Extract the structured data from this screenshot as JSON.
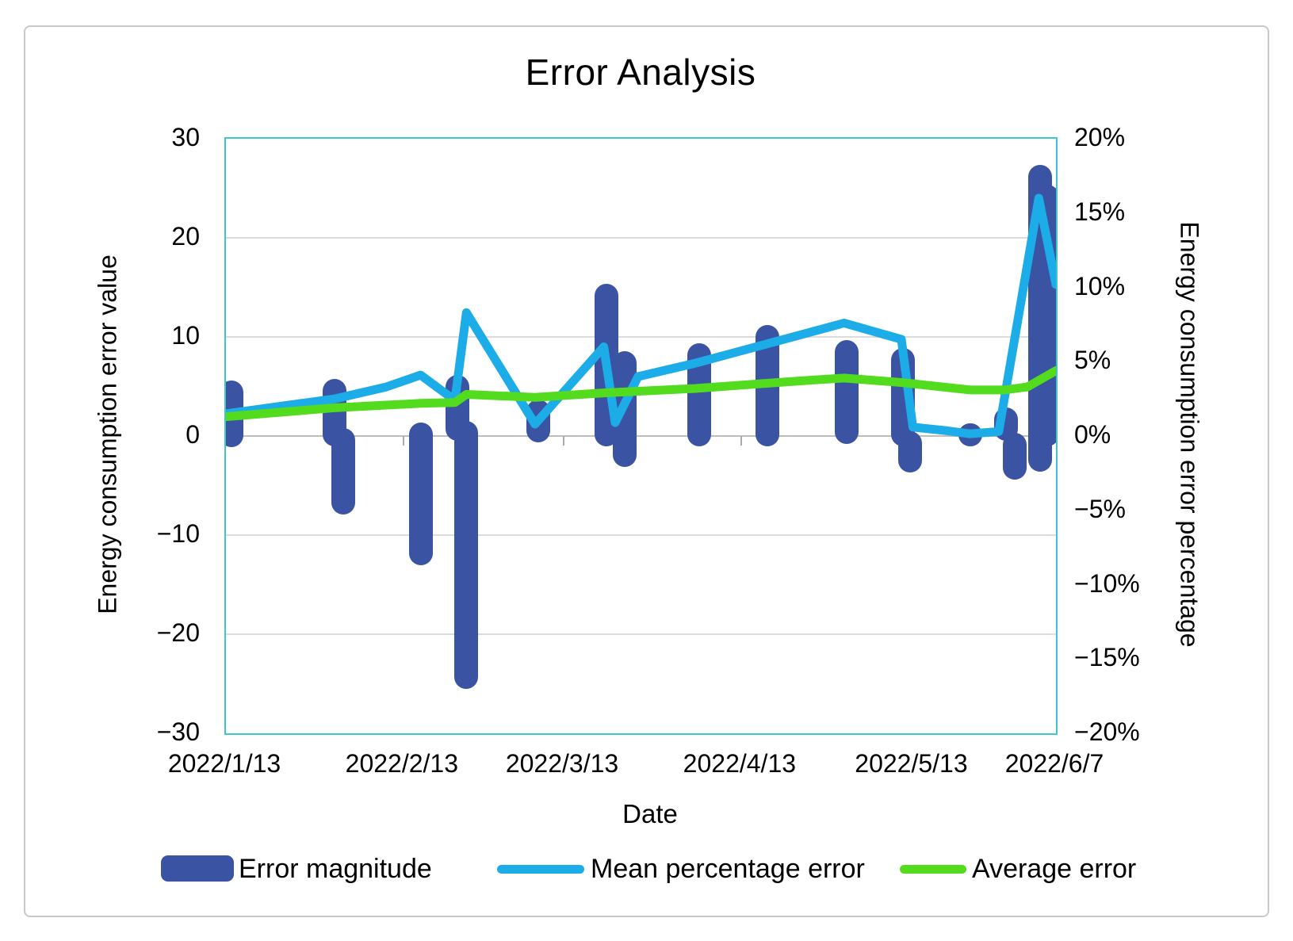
{
  "title": "Error Analysis",
  "axes": {
    "x_title": "Date",
    "left_title": "Energy consumption error value",
    "right_title": "Energy consumption error percentage",
    "left_tick_labels": [
      "30",
      "20",
      "10",
      "0",
      "−10",
      "−20",
      "−30"
    ],
    "right_tick_labels": [
      "20%",
      "15%",
      "10%",
      "5%",
      "0%",
      "−5%",
      "−10%",
      "−15%",
      "−20%"
    ],
    "x_tick_labels": [
      "2022/1/13",
      "2022/2/13",
      "2022/3/13",
      "2022/4/13",
      "2022/5/13",
      "2022/6/7"
    ]
  },
  "legend": {
    "bar_label": "Error magnitude",
    "blue_label": "Mean percentage error",
    "green_label": "Average error"
  },
  "colors": {
    "bar": "#3a53a3",
    "blue_line": "#1cace8",
    "green_line": "#53dc1d",
    "plot_border": "#3fc6c8",
    "gridline": "#dcdcdc",
    "zero_line": "#bdbdbd",
    "frame": "#c9c9c9",
    "text": "#000000"
  },
  "chart_data": {
    "type": "combo (rounded-cap bars + 2 lines, dual y-axes)",
    "title": "Error Analysis",
    "xlabel": "Date",
    "x_axis": {
      "start_date": "2022/1/13",
      "end_date": "2022/6/7",
      "span_days": 145,
      "tick_days": [
        0,
        31,
        59,
        90,
        120,
        145
      ],
      "tick_labels": [
        "2022/1/13",
        "2022/2/13",
        "2022/3/13",
        "2022/4/13",
        "2022/5/13",
        "2022/6/7"
      ]
    },
    "left_axis": {
      "title": "Energy consumption error value",
      "min": -30,
      "max": 30,
      "gridline_step": 10
    },
    "right_axis": {
      "title": "Energy consumption error percentage",
      "min_pct": -20,
      "max_pct": 20,
      "label_step_pct": 5
    },
    "bars_note": "Error magnitude, left axis; capsule bars with round caps; high/low = visible top/bottom extent in axis units",
    "bars": [
      {
        "day": 1,
        "date": "2022/1/14",
        "high": 5.6,
        "low": -1.1
      },
      {
        "day": 19,
        "date": "2022/2/1",
        "high": 5.8,
        "low": -1.0
      },
      {
        "day": 20.5,
        "date": "2022/2/2",
        "high": 0.8,
        "low": -7.9
      },
      {
        "day": 34,
        "date": "2022/2/16",
        "high": 1.4,
        "low": -13.0
      },
      {
        "day": 40.5,
        "date": "2022/2/22",
        "high": 6.2,
        "low": -0.5
      },
      {
        "day": 42,
        "date": "2022/2/24",
        "high": 1.5,
        "low": -25.5
      },
      {
        "day": 54.5,
        "date": "2022/3/8",
        "high": 3.7,
        "low": -0.6
      },
      {
        "day": 66.5,
        "date": "2022/3/20",
        "high": 15.4,
        "low": -1.0
      },
      {
        "day": 69.7,
        "date": "2022/3/24",
        "high": 8.6,
        "low": -3.1
      },
      {
        "day": 82.7,
        "date": "2022/4/5",
        "high": 9.4,
        "low": -1.0
      },
      {
        "day": 94.6,
        "date": "2022/4/17",
        "high": 11.2,
        "low": -1.0
      },
      {
        "day": 108.4,
        "date": "2022/5/1",
        "high": 9.7,
        "low": -0.8
      },
      {
        "day": 118.3,
        "date": "2022/5/11",
        "high": 8.9,
        "low": -1.0
      },
      {
        "day": 119.5,
        "date": "2022/5/12",
        "high": 0.5,
        "low": -3.7
      },
      {
        "day": 130,
        "date": "2022/5/23",
        "high": 1.3,
        "low": -1.0
      },
      {
        "day": 136.3,
        "date": "2022/5/29",
        "high": 2.9,
        "low": -0.5
      },
      {
        "day": 137.8,
        "date": "2022/5/31",
        "high": 0.3,
        "low": -4.4
      },
      {
        "day": 142.2,
        "date": "2022/6/4",
        "high": 27.4,
        "low": -3.6
      },
      {
        "day": 143.5,
        "date": "2022/6/5",
        "high": 25.4,
        "low": -1.0
      }
    ],
    "series": [
      {
        "name": "Mean percentage error",
        "axis": "right",
        "units": "percent",
        "points": [
          {
            "day": 0,
            "pct": 1.5
          },
          {
            "day": 19,
            "pct": 2.5
          },
          {
            "day": 28,
            "pct": 3.3
          },
          {
            "day": 34,
            "pct": 4.1
          },
          {
            "day": 40,
            "pct": 2.4
          },
          {
            "day": 42,
            "pct": 8.3
          },
          {
            "day": 54,
            "pct": 0.8
          },
          {
            "day": 66,
            "pct": 6.0
          },
          {
            "day": 68,
            "pct": 0.9
          },
          {
            "day": 72,
            "pct": 4.0
          },
          {
            "day": 82,
            "pct": 4.9
          },
          {
            "day": 108,
            "pct": 7.6
          },
          {
            "day": 118,
            "pct": 6.5
          },
          {
            "day": 120,
            "pct": 0.6
          },
          {
            "day": 126,
            "pct": 0.35
          },
          {
            "day": 130,
            "pct": 0.15
          },
          {
            "day": 135,
            "pct": 0.3
          },
          {
            "day": 142,
            "pct": 16.0
          },
          {
            "day": 145,
            "pct": 10.2
          }
        ]
      },
      {
        "name": "Average error",
        "axis": "right",
        "units": "percent",
        "points": [
          {
            "day": 0,
            "pct": 1.3
          },
          {
            "day": 19,
            "pct": 1.9
          },
          {
            "day": 34,
            "pct": 2.2
          },
          {
            "day": 40,
            "pct": 2.25
          },
          {
            "day": 42,
            "pct": 2.8
          },
          {
            "day": 54,
            "pct": 2.6
          },
          {
            "day": 66,
            "pct": 2.9
          },
          {
            "day": 82,
            "pct": 3.2
          },
          {
            "day": 100,
            "pct": 3.7
          },
          {
            "day": 108,
            "pct": 3.9
          },
          {
            "day": 118,
            "pct": 3.6
          },
          {
            "day": 130,
            "pct": 3.1
          },
          {
            "day": 136,
            "pct": 3.1
          },
          {
            "day": 140,
            "pct": 3.3
          },
          {
            "day": 145,
            "pct": 4.4
          }
        ]
      }
    ],
    "legend_position": "bottom"
  }
}
